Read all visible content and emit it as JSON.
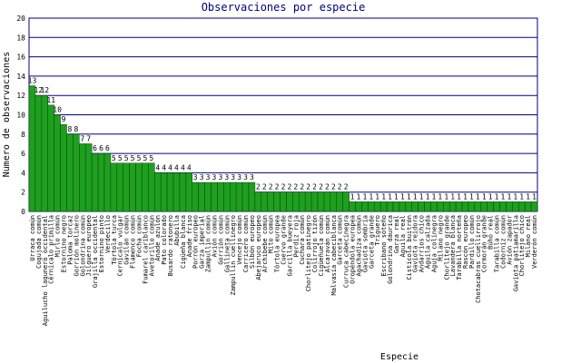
{
  "chart_data": {
    "type": "bar",
    "title": "Observaciones por especie",
    "x_label": "Especie",
    "y_label": "Numero de observaciones",
    "categories": [
      "Urraca común",
      "Cogujada común",
      "Aguilucho lagunero occidental",
      "Cernícalo primilla",
      "Mirlo común",
      "Estornino negro",
      "Paloma torcaz",
      "Gorrión molinero",
      "Golondrina común",
      "Jilguero europeo",
      "Grajilla occidental",
      "Estornino pinto",
      "Verdecillo",
      "Tórtola turca",
      "Cernícalo vulgar",
      "Gavilán común",
      "Flamenco común",
      "Focha común",
      "Fumarel cariblanco",
      "Avetorillo común",
      "Ánade azulón",
      "Pato colorado",
      "Busardo ratonero",
      "Abubilla",
      "Cigüeña blanca",
      "Ánade friso",
      "Porrón europeo",
      "Garza imperial",
      "Zampullín común",
      "Avión común",
      "Gorrión común",
      "Gallineta común",
      "Zampullín cuellinegro",
      "Vencejo común",
      "Carricero común",
      "Silbón europeo",
      "Abejaruco europeo",
      "Archibebe común",
      "Mito común",
      "Tórtola europea",
      "Cuervo grande",
      "Garcilla bueyera",
      "Perdiz roja",
      "Cuchara común",
      "Chorlitejo patinegro",
      "Colirrojo tizón",
      "Cigüeñuela común",
      "Alcaraván común",
      "Malvasía cabeciblanca",
      "Garceta común",
      "Curruca cabecinegra",
      "Oropéndola europea",
      "Agachadiza común",
      "Gaviota sombría",
      "Garceta grande",
      "Triguero",
      "Escribano soteño",
      "Golondrina dáurica",
      "Garza real",
      "Águila real",
      "Cisticola buitrón",
      "Gaviota reidora",
      "Andarríos chico",
      "Águila calzada",
      "Aguja colinegra",
      "Milano negro",
      "Chorlitejo grande",
      "Lavandera blanca",
      "Tarabilla norteña",
      "Rascón europeo",
      "Pardillo común",
      "Chotacabras cuellirrojo",
      "Cormorán grande",
      "Búho real",
      "Tarabilla común",
      "Codorniz común",
      "Avión zapador",
      "Gaviota patiamarilla",
      "Chorlitejo chico",
      "Milano real",
      "Verderón común"
    ],
    "values": [
      13,
      12,
      12,
      11,
      10,
      9,
      8,
      8,
      7,
      7,
      6,
      6,
      6,
      5,
      5,
      5,
      5,
      5,
      5,
      5,
      4,
      4,
      4,
      4,
      4,
      4,
      3,
      3,
      3,
      3,
      3,
      3,
      3,
      3,
      3,
      3,
      2,
      2,
      2,
      2,
      2,
      2,
      2,
      2,
      2,
      2,
      2,
      2,
      2,
      2,
      2,
      1,
      1,
      1,
      1,
      1,
      1,
      1,
      1,
      1,
      1,
      1,
      1,
      1,
      1,
      1,
      1,
      1,
      1,
      1,
      1,
      1,
      1,
      1,
      1,
      1,
      1,
      1,
      1,
      1,
      1
    ],
    "color": "#1ea01e",
    "ylim": [
      0,
      20
    ],
    "yticks": [
      0,
      2,
      4,
      6,
      8,
      10,
      12,
      14,
      16,
      18,
      20
    ],
    "grid": true
  }
}
